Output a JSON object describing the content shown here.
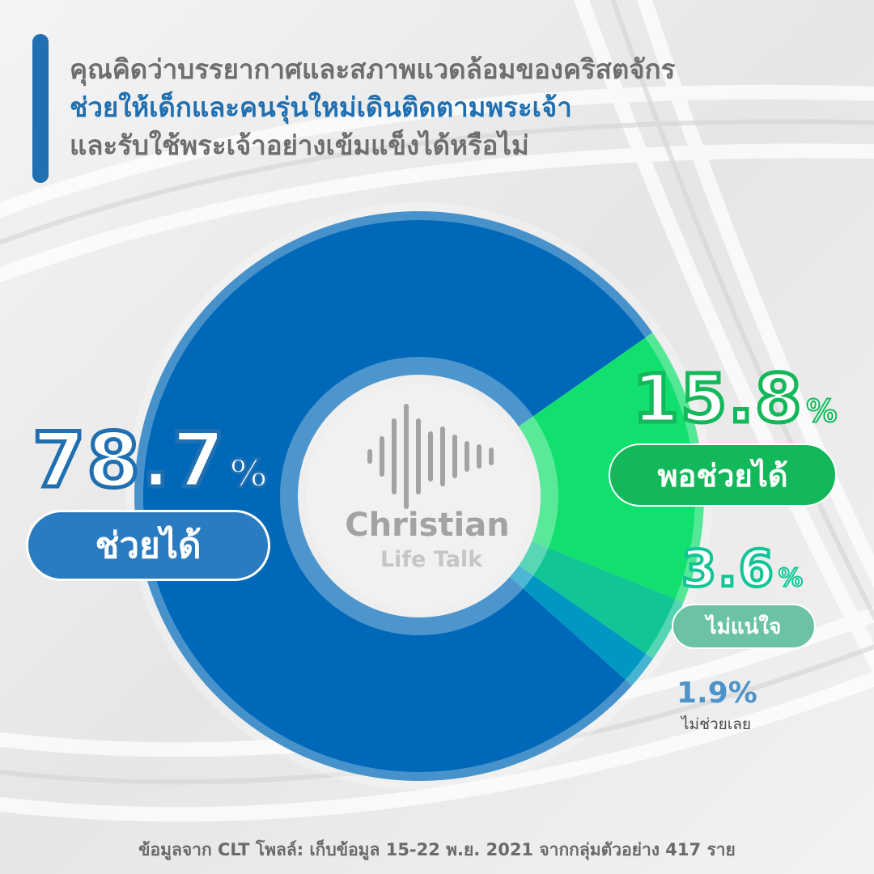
{
  "title": {
    "line1": "คุณคิดว่าบรรยากาศและสภาพแวดล้อมของคริสตจักร",
    "line2": "ช่วยให้เด็กและคนรุ่นใหม่เดินติดตามพระเจ้า",
    "line3": "และรับใช้พระเจ้าอย่างเข้มแข็งได้หรือไม่"
  },
  "logo": {
    "line1": "Christian",
    "line2": "Life Talk"
  },
  "labels": {
    "helps": {
      "value": "78.7",
      "unit": "%",
      "label": "ช่วยได้"
    },
    "somewhat": {
      "value": "15.8",
      "unit": "%",
      "label": "พอช่วยได้"
    },
    "unsure": {
      "value": "3.6",
      "unit": "%",
      "label": "ไม่แน่ใจ"
    },
    "no_help": {
      "value": "1.9%",
      "label": "ไม่ช่วยเลย"
    }
  },
  "footer": "ข้อมูลจาก CLT โพลล์: เก็บข้อมูล 15-22 พ.ย. 2021 จากกลุ่มตัวอย่าง 417 ราย",
  "colors": {
    "helps": "#0068b8",
    "somewhat": "#12e06e",
    "unsure": "#12c596",
    "no_help": "#0097c2",
    "accent": "#1f6fb1"
  },
  "chart_data": {
    "type": "pie",
    "variant": "donut",
    "categories": [
      "ช่วยได้",
      "พอช่วยได้",
      "ไม่แน่ใจ",
      "ไม่ช่วยเลย"
    ],
    "values": [
      78.7,
      15.8,
      3.6,
      1.9
    ],
    "unit": "%"
  }
}
